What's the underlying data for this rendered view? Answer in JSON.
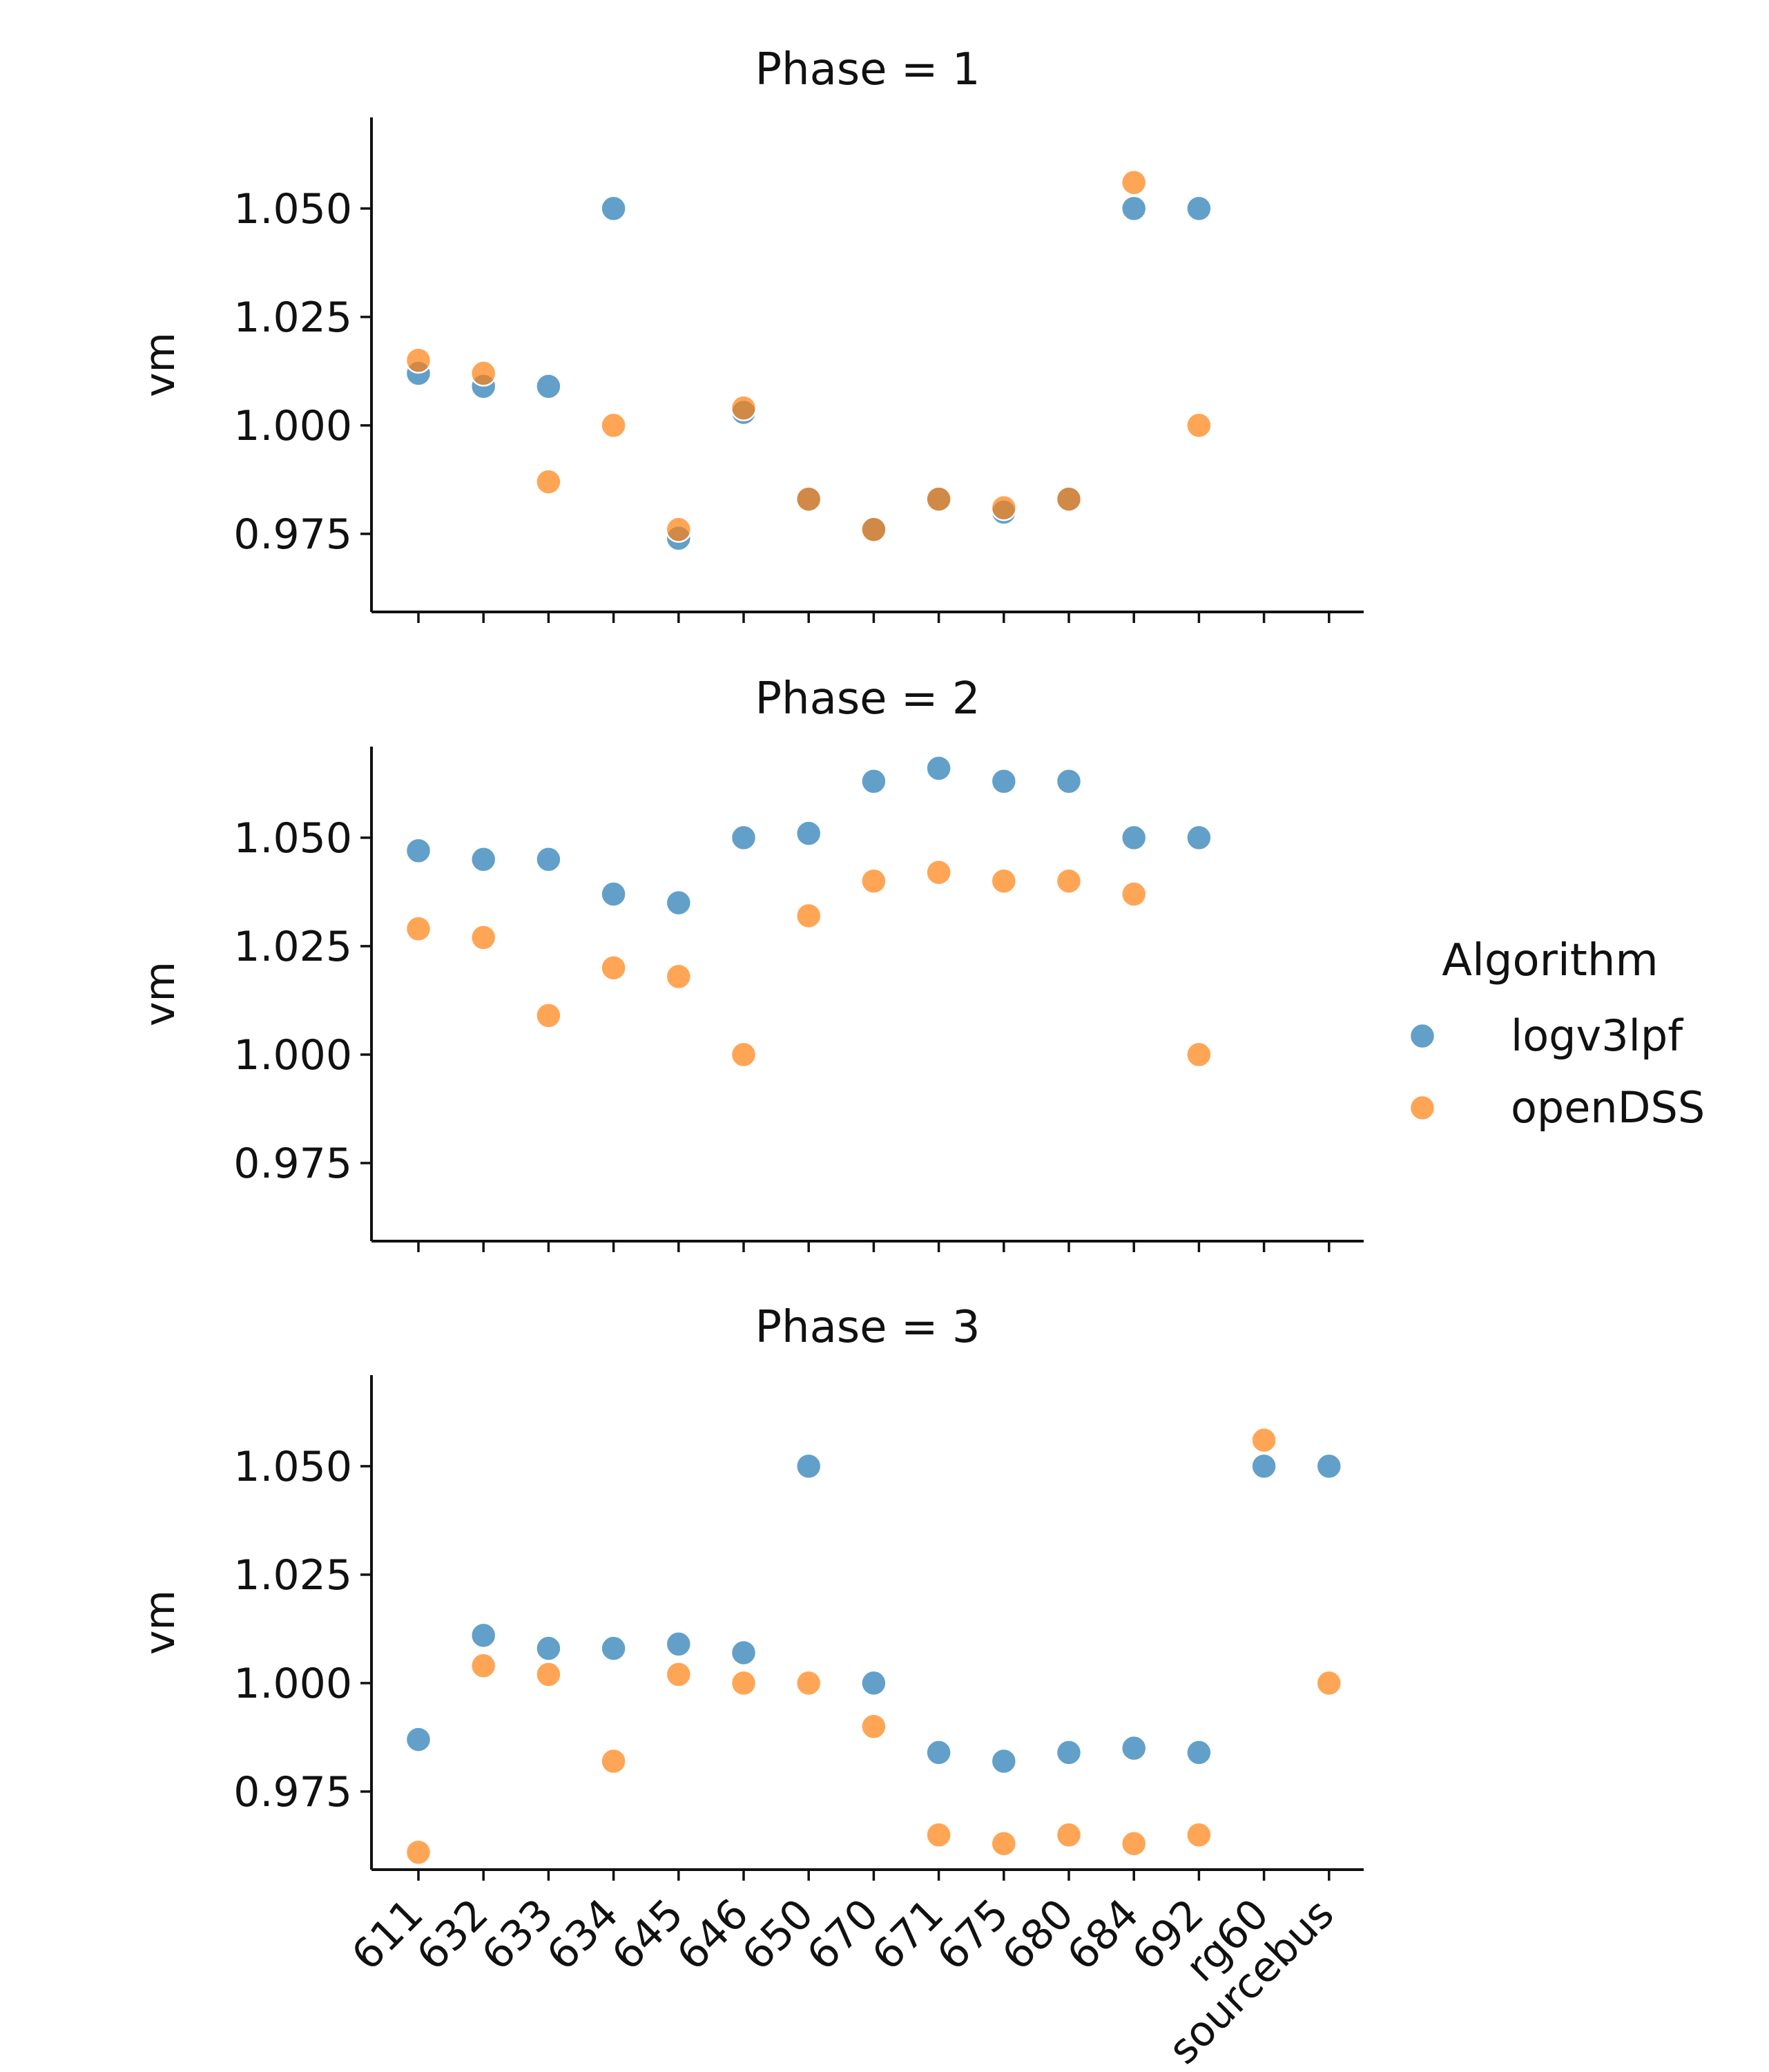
{
  "chart_data": {
    "type": "scatter",
    "facet_variable": "Phase",
    "ylabel": "vm",
    "ylim": [
      0.957,
      1.071
    ],
    "yticks": [
      0.975,
      1.0,
      1.025,
      1.05
    ],
    "ytick_labels": [
      "0.975",
      "1.000",
      "1.025",
      "1.050"
    ],
    "categories": [
      "611",
      "632",
      "633",
      "634",
      "645",
      "646",
      "650",
      "670",
      "671",
      "675",
      "680",
      "684",
      "692",
      "rg60",
      "sourcebus"
    ],
    "legend": {
      "title": "Algorithm",
      "placement": "right"
    },
    "colors": {
      "logv3lpf": "#1f77b4",
      "openDSS": "#ff7f0e"
    },
    "panels": [
      {
        "title": "Phase = 1",
        "series": [
          {
            "name": "logv3lpf",
            "values": [
              1.012,
              1.009,
              1.009,
              1.05,
              0.974,
              1.003,
              0.983,
              0.976,
              0.983,
              0.98,
              0.983,
              1.05,
              1.05,
              null,
              null
            ]
          },
          {
            "name": "openDSS",
            "values": [
              1.015,
              1.012,
              0.987,
              1.0,
              0.976,
              1.004,
              0.983,
              0.976,
              0.983,
              0.981,
              0.983,
              1.056,
              1.0,
              null,
              null
            ]
          }
        ]
      },
      {
        "title": "Phase = 2",
        "series": [
          {
            "name": "logv3lpf",
            "values": [
              1.047,
              1.045,
              1.045,
              1.037,
              1.035,
              1.05,
              1.051,
              1.063,
              1.066,
              1.063,
              1.063,
              1.05,
              1.05,
              null,
              null
            ]
          },
          {
            "name": "openDSS",
            "values": [
              1.029,
              1.027,
              1.009,
              1.02,
              1.018,
              1.0,
              1.032,
              1.04,
              1.042,
              1.04,
              1.04,
              1.037,
              1.0,
              null,
              null
            ]
          }
        ]
      },
      {
        "title": "Phase = 3",
        "series": [
          {
            "name": "logv3lpf",
            "values": [
              0.987,
              1.011,
              1.008,
              1.008,
              1.009,
              1.007,
              1.05,
              1.0,
              0.984,
              0.982,
              0.984,
              0.985,
              0.984,
              1.05,
              1.05
            ]
          },
          {
            "name": "openDSS",
            "values": [
              0.961,
              1.004,
              1.002,
              0.982,
              1.002,
              1.0,
              1.0,
              0.99,
              0.965,
              0.963,
              0.965,
              0.963,
              0.965,
              1.056,
              1.0
            ]
          }
        ]
      }
    ]
  }
}
